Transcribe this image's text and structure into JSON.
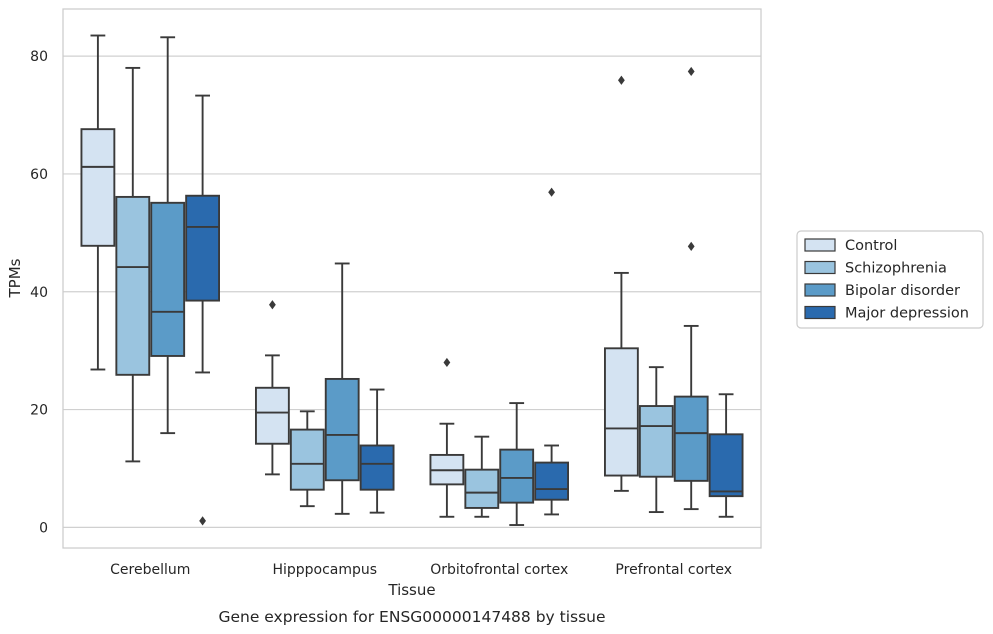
{
  "chart_data": {
    "type": "box",
    "caption": "Gene expression for ENSG00000147488 by tissue",
    "xlabel": "Tissue",
    "ylabel": "TPMs",
    "ylim": [
      -3.5,
      88
    ],
    "yticks": [
      0,
      20,
      40,
      60,
      80
    ],
    "grid": "horizontal",
    "legend_position": "right",
    "categories": [
      "Cerebellum",
      "Hipppocampus",
      "Orbitofrontal cortex",
      "Prefrontal cortex"
    ],
    "series": [
      {
        "name": "Control",
        "color": "#d4e3f2",
        "boxes": [
          {
            "whisker_low": 26.8,
            "q1": 47.8,
            "median": 61.2,
            "q3": 67.6,
            "whisker_high": 83.5,
            "outliers": []
          },
          {
            "whisker_low": 9.0,
            "q1": 14.2,
            "median": 19.5,
            "q3": 23.7,
            "whisker_high": 29.2,
            "outliers": [
              37.8
            ]
          },
          {
            "whisker_low": 1.8,
            "q1": 7.3,
            "median": 9.7,
            "q3": 12.3,
            "whisker_high": 17.6,
            "outliers": [
              28.0
            ]
          },
          {
            "whisker_low": 6.2,
            "q1": 8.8,
            "median": 16.8,
            "q3": 30.4,
            "whisker_high": 43.2,
            "outliers": [
              75.9
            ]
          }
        ]
      },
      {
        "name": "Schizophrenia",
        "color": "#9ac4df",
        "boxes": [
          {
            "whisker_low": 11.2,
            "q1": 25.9,
            "median": 44.2,
            "q3": 56.1,
            "whisker_high": 78.0,
            "outliers": []
          },
          {
            "whisker_low": 3.6,
            "q1": 6.4,
            "median": 10.8,
            "q3": 16.6,
            "whisker_high": 19.7,
            "outliers": []
          },
          {
            "whisker_low": 1.8,
            "q1": 3.3,
            "median": 5.9,
            "q3": 9.8,
            "whisker_high": 15.4,
            "outliers": []
          },
          {
            "whisker_low": 2.6,
            "q1": 8.6,
            "median": 17.2,
            "q3": 20.6,
            "whisker_high": 27.2,
            "outliers": []
          }
        ]
      },
      {
        "name": "Bipolar disorder",
        "color": "#5b9bc8",
        "boxes": [
          {
            "whisker_low": 16.0,
            "q1": 29.1,
            "median": 36.6,
            "q3": 55.1,
            "whisker_high": 83.2,
            "outliers": []
          },
          {
            "whisker_low": 2.3,
            "q1": 8.0,
            "median": 15.7,
            "q3": 25.2,
            "whisker_high": 44.8,
            "outliers": []
          },
          {
            "whisker_low": 0.4,
            "q1": 4.2,
            "median": 8.4,
            "q3": 13.2,
            "whisker_high": 21.1,
            "outliers": []
          },
          {
            "whisker_low": 3.1,
            "q1": 7.9,
            "median": 16.0,
            "q3": 22.2,
            "whisker_high": 34.2,
            "outliers": [
              47.7,
              77.4
            ]
          }
        ]
      },
      {
        "name": "Major depression",
        "color": "#2a6aae",
        "boxes": [
          {
            "whisker_low": 26.3,
            "q1": 38.5,
            "median": 51.0,
            "q3": 56.3,
            "whisker_high": 73.3,
            "outliers": [
              1.1
            ]
          },
          {
            "whisker_low": 2.5,
            "q1": 6.4,
            "median": 10.8,
            "q3": 13.9,
            "whisker_high": 23.4,
            "outliers": []
          },
          {
            "whisker_low": 2.2,
            "q1": 4.7,
            "median": 6.5,
            "q3": 11.0,
            "whisker_high": 13.9,
            "outliers": [
              56.9
            ]
          },
          {
            "whisker_low": 1.8,
            "q1": 5.3,
            "median": 6.1,
            "q3": 15.8,
            "whisker_high": 22.6,
            "outliers": []
          }
        ]
      }
    ]
  }
}
